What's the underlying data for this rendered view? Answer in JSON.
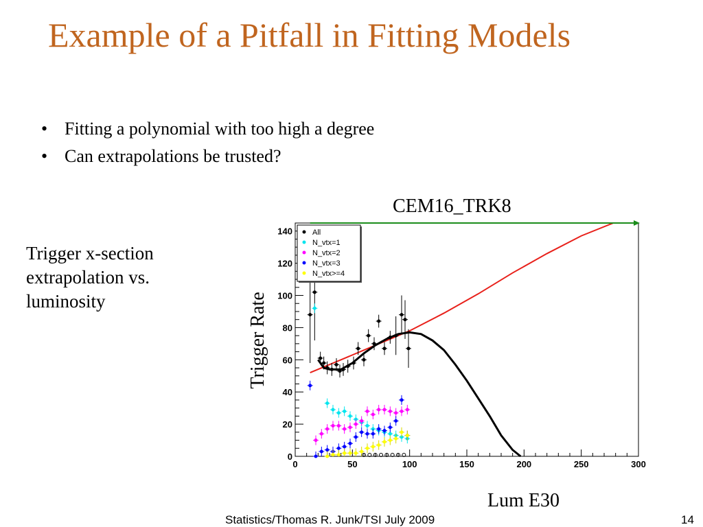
{
  "slide": {
    "title": "Example of a Pitfall in Fitting Models",
    "bullets": [
      "Fitting a polynomial with too high a degree",
      "Can extrapolations be trusted?"
    ],
    "side_note": [
      "Trigger x-section",
      "extrapolation vs.",
      "luminosity"
    ],
    "footer": "Statistics/Thomas R. Junk/TSI July 2009",
    "page_number": "14"
  },
  "chart_data": {
    "type": "scatter",
    "title": "CEM16_TRK8",
    "xlabel": "Lum E30",
    "ylabel": "Trigger Rate",
    "xlim": [
      0,
      300
    ],
    "ylim": [
      0,
      145
    ],
    "x_ticks": [
      "0",
      "50",
      "100",
      "150",
      "200",
      "250",
      "300"
    ],
    "y_ticks": [
      "0",
      "20",
      "40",
      "60",
      "80",
      "100",
      "120",
      "140"
    ],
    "grid": false,
    "legend_position": "top-left",
    "series": [
      {
        "name": "All",
        "color": "#000000",
        "marker": "circle",
        "x": [
          13,
          17,
          22,
          25,
          28,
          32,
          36,
          39,
          42,
          46,
          51,
          55,
          60,
          64,
          69,
          73,
          78,
          83,
          88,
          93,
          96,
          99
        ],
        "y": [
          88,
          102,
          61,
          58,
          55,
          54,
          57,
          53,
          54,
          56,
          58,
          67,
          60,
          75,
          70,
          84,
          67,
          74,
          75,
          88,
          85,
          67
        ]
      },
      {
        "name": "N_vtx=1",
        "color": "#00e5ee",
        "marker": "circle",
        "x": [
          17,
          28,
          33,
          38,
          43,
          48,
          53,
          58,
          63,
          68,
          73,
          78,
          83,
          88,
          93,
          98
        ],
        "y": [
          92,
          33,
          29,
          27,
          28,
          25,
          23,
          21,
          19,
          17,
          16,
          15,
          14,
          13,
          12,
          11
        ]
      },
      {
        "name": "N_vtx=2",
        "color": "#ff00ff",
        "marker": "circle",
        "x": [
          18,
          23,
          28,
          33,
          38,
          43,
          48,
          53,
          58,
          63,
          68,
          73,
          78,
          83,
          88,
          93,
          98
        ],
        "y": [
          10,
          14,
          17,
          19,
          19,
          17,
          18,
          20,
          22,
          28,
          26,
          29,
          29,
          28,
          27,
          28,
          29
        ]
      },
      {
        "name": "N_vtx=3",
        "color": "#0000ff",
        "marker": "circle",
        "x": [
          13,
          18,
          23,
          28,
          33,
          38,
          43,
          48,
          53,
          58,
          63,
          68,
          73,
          78,
          83,
          88,
          93,
          98
        ],
        "y": [
          44,
          0,
          3,
          4,
          3,
          5,
          6,
          8,
          12,
          15,
          14,
          14,
          17,
          16,
          18,
          22,
          35,
          13
        ]
      },
      {
        "name": "N_vtx>=4",
        "color": "#ffff00",
        "marker": "circle",
        "x": [
          28,
          33,
          38,
          43,
          48,
          53,
          58,
          63,
          68,
          73,
          78,
          83,
          88,
          93,
          98
        ],
        "y": [
          0,
          1,
          1,
          2,
          2,
          2,
          3,
          5,
          6,
          7,
          9,
          10,
          11,
          15,
          13
        ]
      }
    ],
    "open_points": {
      "color": "#000000",
      "x": [
        60,
        65,
        70,
        75,
        80,
        85,
        90,
        95
      ],
      "y": [
        0,
        0,
        0,
        0,
        0,
        0,
        0,
        0
      ]
    },
    "polynomial_fit": {
      "color": "#000000",
      "x": [
        20,
        25,
        30,
        40,
        50,
        60,
        70,
        80,
        90,
        100,
        110,
        120,
        130,
        140,
        150,
        160,
        170,
        180,
        190,
        197
      ],
      "y": [
        60,
        55,
        54,
        54,
        58,
        64,
        69,
        73,
        76,
        77,
        76,
        72,
        66,
        57,
        47,
        36,
        25,
        13,
        4,
        0
      ]
    },
    "linear_fit": {
      "color": "#e8201a",
      "x": [
        13,
        40,
        70,
        100,
        130,
        160,
        190,
        220,
        250,
        278
      ],
      "y": [
        52,
        60,
        69,
        78,
        89,
        101,
        114,
        126,
        137,
        145
      ]
    },
    "reference_line": {
      "color": "#1a8c1a",
      "x": [
        13,
        300
      ],
      "y": [
        145,
        145
      ]
    }
  }
}
